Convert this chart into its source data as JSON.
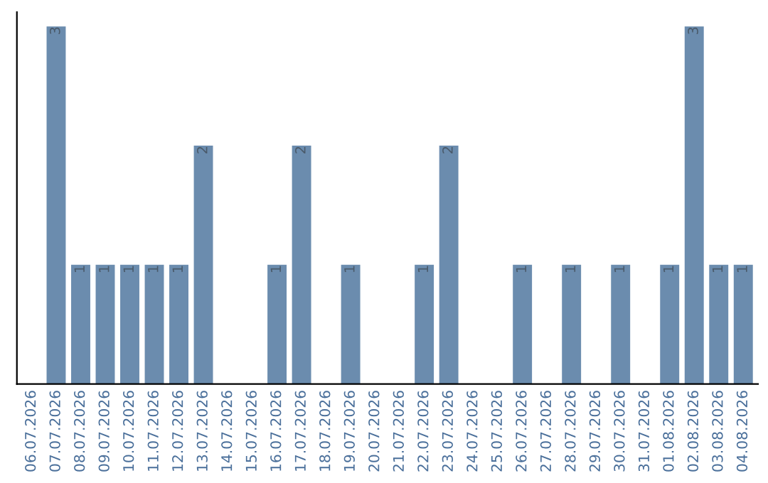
{
  "chart_data": {
    "type": "bar",
    "categories": [
      "06.07.2026",
      "07.07.2026",
      "08.07.2026",
      "09.07.2026",
      "10.07.2026",
      "11.07.2026",
      "12.07.2026",
      "13.07.2026",
      "14.07.2026",
      "15.07.2026",
      "16.07.2026",
      "17.07.2026",
      "18.07.2026",
      "19.07.2026",
      "20.07.2026",
      "21.07.2026",
      "22.07.2026",
      "23.07.2026",
      "24.07.2026",
      "25.07.2026",
      "26.07.2026",
      "27.07.2026",
      "28.07.2026",
      "29.07.2026",
      "30.07.2026",
      "31.07.2026",
      "01.08.2026",
      "02.08.2026",
      "03.08.2026",
      "04.08.2026"
    ],
    "values": [
      0,
      3,
      1,
      1,
      1,
      1,
      1,
      2,
      0,
      0,
      1,
      2,
      0,
      1,
      0,
      0,
      1,
      2,
      0,
      0,
      1,
      0,
      1,
      0,
      1,
      0,
      1,
      3,
      1,
      1
    ],
    "value_labels": [
      null,
      "3",
      "1",
      "1",
      "1",
      "1",
      "1",
      "2",
      null,
      null,
      "1",
      "2",
      null,
      "1",
      null,
      null,
      "1",
      "2",
      null,
      null,
      "1",
      null,
      "1",
      null,
      "1",
      null,
      "1",
      "3",
      "1",
      "1"
    ],
    "color": "#6b8cae",
    "grid": false,
    "legend": false
  }
}
